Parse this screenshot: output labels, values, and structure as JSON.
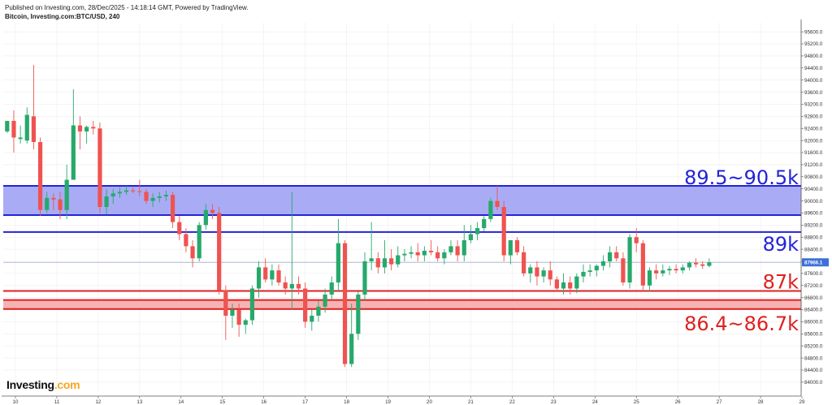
{
  "header": {
    "line1": "Published on Investing.com, 28/Dec/2025 - 14:18:14 GMT, Powered by TradingView.",
    "line2": "Bitcoin, Investing.com:BTC/USD, 240"
  },
  "logo": {
    "text": "Investing",
    "suffix": ".com"
  },
  "chart_data": {
    "type": "candlestick",
    "x_ticks": [
      "10",
      "11",
      "12",
      "13",
      "14",
      "15",
      "16",
      "17",
      "18",
      "19",
      "20",
      "21",
      "22",
      "23",
      "24",
      "25",
      "26",
      "27",
      "28",
      "29"
    ],
    "y_ticks": [
      "95600.0",
      "95200.0",
      "94800.0",
      "94400.0",
      "94000.0",
      "93600.0",
      "93200.0",
      "92800.0",
      "92400.0",
      "92000.0",
      "91600.0",
      "91200.0",
      "90800.0",
      "90400.0",
      "90000.0",
      "89600.0",
      "89200.0",
      "88800.0",
      "88400.0",
      "88000.0",
      "87600.0",
      "87200.0",
      "86800.0",
      "86400.0",
      "86000.0",
      "85600.0",
      "85200.0",
      "84800.0",
      "84400.0",
      "84000.0"
    ],
    "ylim": [
      83700,
      95900
    ],
    "x_range": [
      9.7,
      29
    ],
    "current_price": {
      "label": "87966.1",
      "value": 87966.1,
      "color": "#3e6fd8"
    },
    "colors": {
      "up": "#26a96c",
      "down": "#ef5350"
    },
    "zones": [
      {
        "label": "89.5~90.5k",
        "low": 89530,
        "high": 90500,
        "color": "#2323d8",
        "fill": "#a9acf5"
      },
      {
        "label": "89k",
        "value": 88970,
        "color": "#2323d8"
      },
      {
        "label": "87k",
        "value": 87020,
        "color": "#e02020"
      },
      {
        "label": "86.4~86.7k",
        "low": 86420,
        "high": 86720,
        "color": "#e02020",
        "fill": "#f6b3b3"
      }
    ],
    "candles": [
      {
        "t": 9.8,
        "o": 92300,
        "h": 92650,
        "l": 92250,
        "c": 92650
      },
      {
        "t": 9.96,
        "o": 92650,
        "h": 93000,
        "l": 91600,
        "c": 92100
      },
      {
        "t": 10.12,
        "o": 92050,
        "h": 92500,
        "l": 91900,
        "c": 92100
      },
      {
        "t": 10.28,
        "o": 92000,
        "h": 93100,
        "l": 91900,
        "c": 92850
      },
      {
        "t": 10.44,
        "o": 92800,
        "h": 94500,
        "l": 91700,
        "c": 91950
      },
      {
        "t": 10.6,
        "o": 91950,
        "h": 92100,
        "l": 89500,
        "c": 89700
      },
      {
        "t": 10.76,
        "o": 89700,
        "h": 90300,
        "l": 89600,
        "c": 90100
      },
      {
        "t": 10.92,
        "o": 90100,
        "h": 90250,
        "l": 89700,
        "c": 90050
      },
      {
        "t": 11.08,
        "o": 90050,
        "h": 90300,
        "l": 89400,
        "c": 89700
      },
      {
        "t": 11.24,
        "o": 89700,
        "h": 91200,
        "l": 89400,
        "c": 90700
      },
      {
        "t": 11.4,
        "o": 90700,
        "h": 93700,
        "l": 90700,
        "c": 92500
      },
      {
        "t": 11.56,
        "o": 92500,
        "h": 92800,
        "l": 91700,
        "c": 92300
      },
      {
        "t": 11.72,
        "o": 92300,
        "h": 92500,
        "l": 91900,
        "c": 92450
      },
      {
        "t": 11.88,
        "o": 92450,
        "h": 92650,
        "l": 92200,
        "c": 92400
      },
      {
        "t": 12.04,
        "o": 92400,
        "h": 92600,
        "l": 89600,
        "c": 89800
      },
      {
        "t": 12.2,
        "o": 89800,
        "h": 90400,
        "l": 89550,
        "c": 90150
      },
      {
        "t": 12.36,
        "o": 90150,
        "h": 90400,
        "l": 89900,
        "c": 90250
      },
      {
        "t": 12.52,
        "o": 90250,
        "h": 90450,
        "l": 90100,
        "c": 90300
      },
      {
        "t": 12.68,
        "o": 90300,
        "h": 90500,
        "l": 90200,
        "c": 90350
      },
      {
        "t": 12.84,
        "o": 90350,
        "h": 90450,
        "l": 90250,
        "c": 90320
      },
      {
        "t": 13.0,
        "o": 90320,
        "h": 90700,
        "l": 90150,
        "c": 90300
      },
      {
        "t": 13.16,
        "o": 90300,
        "h": 90400,
        "l": 89900,
        "c": 90000
      },
      {
        "t": 13.32,
        "o": 90000,
        "h": 90250,
        "l": 89800,
        "c": 90100
      },
      {
        "t": 13.48,
        "o": 90100,
        "h": 90300,
        "l": 89950,
        "c": 90150
      },
      {
        "t": 13.64,
        "o": 90150,
        "h": 90350,
        "l": 90000,
        "c": 90200
      },
      {
        "t": 13.8,
        "o": 90200,
        "h": 90300,
        "l": 89100,
        "c": 89300
      },
      {
        "t": 13.96,
        "o": 89300,
        "h": 89500,
        "l": 88700,
        "c": 88900
      },
      {
        "t": 14.12,
        "o": 88900,
        "h": 89100,
        "l": 88300,
        "c": 88500
      },
      {
        "t": 14.28,
        "o": 88500,
        "h": 88700,
        "l": 87800,
        "c": 88100
      },
      {
        "t": 14.44,
        "o": 88100,
        "h": 89300,
        "l": 88000,
        "c": 89200
      },
      {
        "t": 14.6,
        "o": 89200,
        "h": 89900,
        "l": 89050,
        "c": 89700
      },
      {
        "t": 14.76,
        "o": 89700,
        "h": 89900,
        "l": 89400,
        "c": 89600
      },
      {
        "t": 14.92,
        "o": 89600,
        "h": 89800,
        "l": 86900,
        "c": 87050
      },
      {
        "t": 15.08,
        "o": 87050,
        "h": 87200,
        "l": 85400,
        "c": 86200
      },
      {
        "t": 15.24,
        "o": 86200,
        "h": 86600,
        "l": 85800,
        "c": 86400
      },
      {
        "t": 15.4,
        "o": 86400,
        "h": 86600,
        "l": 85500,
        "c": 85900
      },
      {
        "t": 15.56,
        "o": 85900,
        "h": 86100,
        "l": 85600,
        "c": 86050
      },
      {
        "t": 15.72,
        "o": 86050,
        "h": 87200,
        "l": 85900,
        "c": 87100
      },
      {
        "t": 15.88,
        "o": 87100,
        "h": 88000,
        "l": 86800,
        "c": 87800
      },
      {
        "t": 16.04,
        "o": 87800,
        "h": 88100,
        "l": 87300,
        "c": 87400
      },
      {
        "t": 16.2,
        "o": 87400,
        "h": 87900,
        "l": 87200,
        "c": 87700
      },
      {
        "t": 16.36,
        "o": 87700,
        "h": 87900,
        "l": 87200,
        "c": 87300
      },
      {
        "t": 16.52,
        "o": 87300,
        "h": 87500,
        "l": 86900,
        "c": 87100
      },
      {
        "t": 16.68,
        "o": 87100,
        "h": 90300,
        "l": 86400,
        "c": 87250
      },
      {
        "t": 16.84,
        "o": 87250,
        "h": 87500,
        "l": 86900,
        "c": 87100
      },
      {
        "t": 17.0,
        "o": 87100,
        "h": 87300,
        "l": 85800,
        "c": 86000
      },
      {
        "t": 17.16,
        "o": 86000,
        "h": 86400,
        "l": 85700,
        "c": 86200
      },
      {
        "t": 17.32,
        "o": 86200,
        "h": 86700,
        "l": 86000,
        "c": 86500
      },
      {
        "t": 17.48,
        "o": 86500,
        "h": 87100,
        "l": 86300,
        "c": 86900
      },
      {
        "t": 17.64,
        "o": 86900,
        "h": 87500,
        "l": 86700,
        "c": 87300
      },
      {
        "t": 17.8,
        "o": 87300,
        "h": 89400,
        "l": 87000,
        "c": 88600
      },
      {
        "t": 17.96,
        "o": 88600,
        "h": 88700,
        "l": 84500,
        "c": 84600
      },
      {
        "t": 18.12,
        "o": 84600,
        "h": 86600,
        "l": 84500,
        "c": 85600
      },
      {
        "t": 18.28,
        "o": 85600,
        "h": 87000,
        "l": 85400,
        "c": 86900
      },
      {
        "t": 18.44,
        "o": 86900,
        "h": 88300,
        "l": 86700,
        "c": 88000
      },
      {
        "t": 18.6,
        "o": 88000,
        "h": 89300,
        "l": 87700,
        "c": 88100
      },
      {
        "t": 18.76,
        "o": 88100,
        "h": 88300,
        "l": 87600,
        "c": 87800
      },
      {
        "t": 18.92,
        "o": 87800,
        "h": 88700,
        "l": 87600,
        "c": 88100
      },
      {
        "t": 19.08,
        "o": 88100,
        "h": 88400,
        "l": 87700,
        "c": 87900
      },
      {
        "t": 19.24,
        "o": 87900,
        "h": 88500,
        "l": 87800,
        "c": 88200
      },
      {
        "t": 19.4,
        "o": 88200,
        "h": 88400,
        "l": 88000,
        "c": 88250
      },
      {
        "t": 19.56,
        "o": 88250,
        "h": 88500,
        "l": 88100,
        "c": 88300
      },
      {
        "t": 19.72,
        "o": 88300,
        "h": 88600,
        "l": 88000,
        "c": 88200
      },
      {
        "t": 19.88,
        "o": 88200,
        "h": 88500,
        "l": 88000,
        "c": 88350
      },
      {
        "t": 20.04,
        "o": 88350,
        "h": 88700,
        "l": 88200,
        "c": 88300
      },
      {
        "t": 20.2,
        "o": 88300,
        "h": 88500,
        "l": 88000,
        "c": 88100
      },
      {
        "t": 20.36,
        "o": 88100,
        "h": 88400,
        "l": 87900,
        "c": 88300
      },
      {
        "t": 20.52,
        "o": 88300,
        "h": 88700,
        "l": 88200,
        "c": 88500
      },
      {
        "t": 20.68,
        "o": 88500,
        "h": 88700,
        "l": 88000,
        "c": 88200
      },
      {
        "t": 20.84,
        "o": 88200,
        "h": 89200,
        "l": 88000,
        "c": 88700
      },
      {
        "t": 21.0,
        "o": 88700,
        "h": 89200,
        "l": 88600,
        "c": 88900
      },
      {
        "t": 21.16,
        "o": 88900,
        "h": 89300,
        "l": 88700,
        "c": 89100
      },
      {
        "t": 21.32,
        "o": 89100,
        "h": 89500,
        "l": 89000,
        "c": 89400
      },
      {
        "t": 21.48,
        "o": 89400,
        "h": 90100,
        "l": 89300,
        "c": 90000
      },
      {
        "t": 21.64,
        "o": 90000,
        "h": 90500,
        "l": 89700,
        "c": 89800
      },
      {
        "t": 21.8,
        "o": 89800,
        "h": 90000,
        "l": 88000,
        "c": 88200
      },
      {
        "t": 21.96,
        "o": 88200,
        "h": 88700,
        "l": 87900,
        "c": 88700
      },
      {
        "t": 22.12,
        "o": 88700,
        "h": 88800,
        "l": 88200,
        "c": 88300
      },
      {
        "t": 22.28,
        "o": 88300,
        "h": 88500,
        "l": 87500,
        "c": 87600
      },
      {
        "t": 22.44,
        "o": 87600,
        "h": 87900,
        "l": 87300,
        "c": 87800
      },
      {
        "t": 22.6,
        "o": 87800,
        "h": 88000,
        "l": 87200,
        "c": 87500
      },
      {
        "t": 22.76,
        "o": 87500,
        "h": 87800,
        "l": 87300,
        "c": 87700
      },
      {
        "t": 22.92,
        "o": 87700,
        "h": 88000,
        "l": 87200,
        "c": 87400
      },
      {
        "t": 23.08,
        "o": 87400,
        "h": 87500,
        "l": 87000,
        "c": 87100
      },
      {
        "t": 23.24,
        "o": 87100,
        "h": 87600,
        "l": 86900,
        "c": 87300
      },
      {
        "t": 23.4,
        "o": 87300,
        "h": 87500,
        "l": 86900,
        "c": 87100
      },
      {
        "t": 23.56,
        "o": 87100,
        "h": 87600,
        "l": 86950,
        "c": 87500
      },
      {
        "t": 23.72,
        "o": 87500,
        "h": 87900,
        "l": 87300,
        "c": 87650
      },
      {
        "t": 23.88,
        "o": 87650,
        "h": 87900,
        "l": 87500,
        "c": 87700
      },
      {
        "t": 24.04,
        "o": 87700,
        "h": 87900,
        "l": 87500,
        "c": 87850
      },
      {
        "t": 24.2,
        "o": 87850,
        "h": 88200,
        "l": 87700,
        "c": 88000
      },
      {
        "t": 24.36,
        "o": 88000,
        "h": 88500,
        "l": 87800,
        "c": 88300
      },
      {
        "t": 24.52,
        "o": 88300,
        "h": 88500,
        "l": 88000,
        "c": 88100
      },
      {
        "t": 24.68,
        "o": 88100,
        "h": 88300,
        "l": 87200,
        "c": 87300
      },
      {
        "t": 24.84,
        "o": 87300,
        "h": 88900,
        "l": 87100,
        "c": 88800
      },
      {
        "t": 25.0,
        "o": 88800,
        "h": 89100,
        "l": 88300,
        "c": 88600
      },
      {
        "t": 25.16,
        "o": 88600,
        "h": 88700,
        "l": 87000,
        "c": 87200
      },
      {
        "t": 25.32,
        "o": 87200,
        "h": 87800,
        "l": 87000,
        "c": 87700
      },
      {
        "t": 25.48,
        "o": 87700,
        "h": 87900,
        "l": 87400,
        "c": 87600
      },
      {
        "t": 25.64,
        "o": 87600,
        "h": 87900,
        "l": 87500,
        "c": 87700
      },
      {
        "t": 25.8,
        "o": 87700,
        "h": 87850,
        "l": 87550,
        "c": 87750
      },
      {
        "t": 25.96,
        "o": 87750,
        "h": 87900,
        "l": 87600,
        "c": 87700
      },
      {
        "t": 26.12,
        "o": 87700,
        "h": 87900,
        "l": 87600,
        "c": 87800
      },
      {
        "t": 26.28,
        "o": 87800,
        "h": 88000,
        "l": 87700,
        "c": 87950
      },
      {
        "t": 26.44,
        "o": 87950,
        "h": 88100,
        "l": 87800,
        "c": 87900
      },
      {
        "t": 26.6,
        "o": 87900,
        "h": 88000,
        "l": 87750,
        "c": 87850
      },
      {
        "t": 26.76,
        "o": 87850,
        "h": 88100,
        "l": 87800,
        "c": 87966
      }
    ]
  }
}
